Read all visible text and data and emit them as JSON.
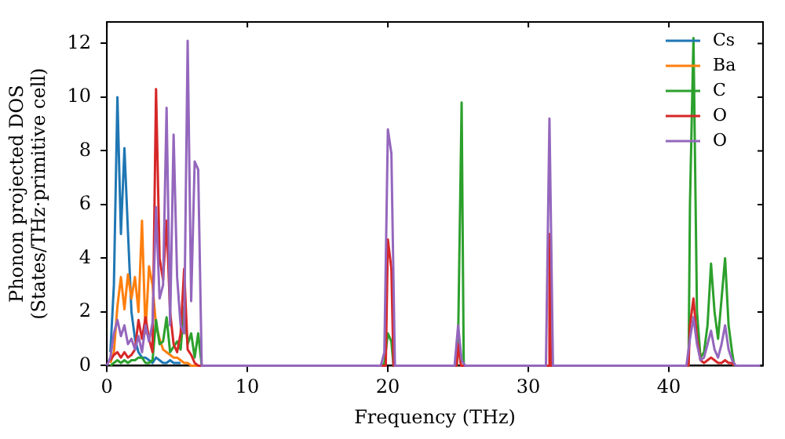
{
  "chart_data": {
    "type": "line",
    "xlabel": "Frequency (THz)",
    "ylabel": "Phonon projected DOS\n(States/THz·primitive cell)",
    "x": [
      0,
      0.25,
      0.5,
      0.75,
      1,
      1.25,
      1.5,
      1.75,
      2,
      2.25,
      2.5,
      2.75,
      3,
      3.25,
      3.5,
      3.75,
      4,
      4.25,
      4.5,
      4.75,
      5,
      5.25,
      5.5,
      5.75,
      6,
      6.25,
      6.5,
      6.75,
      7,
      19.5,
      19.75,
      20,
      20.25,
      20.5,
      24.75,
      25,
      25.25,
      25.5,
      31.25,
      31.5,
      31.75,
      41.25,
      41.5,
      41.75,
      42,
      42.25,
      42.5,
      42.75,
      43,
      43.25,
      43.5,
      43.75,
      44,
      44.25,
      44.5,
      44.75,
      46.5
    ],
    "xlim": [
      0,
      46.7
    ],
    "ylim": [
      0,
      12.8
    ],
    "xticks": [
      0,
      10,
      20,
      30,
      40
    ],
    "yticks": [
      0,
      2,
      4,
      6,
      8,
      10,
      12
    ],
    "grid": false,
    "legend": "top right",
    "marker": "none",
    "series": [
      {
        "name": "Cs",
        "color": "#1f77b4",
        "x": [
          0.25,
          0.5,
          0.75,
          1,
          1.25,
          1.5,
          1.75,
          2,
          2.25,
          2.5,
          2.75,
          3,
          3.25,
          3.5,
          3.75,
          4,
          4.25,
          4.5,
          4.75,
          5,
          5.25
        ],
        "values": [
          0.5,
          3,
          10,
          4.9,
          8.1,
          5,
          2,
          1,
          0.5,
          0.3,
          0.3,
          0.2,
          0.1,
          0.3,
          0.2,
          0.1,
          0.1,
          0.2,
          0.1,
          0.1,
          0.1
        ]
      },
      {
        "name": "Ba",
        "color": "#ff7f0e",
        "x": [
          0.25,
          0.5,
          0.75,
          1,
          1.25,
          1.5,
          1.75,
          2,
          2.25,
          2.5,
          2.75,
          3,
          3.25,
          3.5,
          3.75,
          4,
          4.25,
          4.5,
          4.75,
          5,
          5.25,
          5.5,
          5.75,
          6,
          6.25,
          6.5
        ],
        "values": [
          0.1,
          0.5,
          2.2,
          3.3,
          2.1,
          3.4,
          2.5,
          3.3,
          2,
          5.4,
          1.2,
          3.7,
          3,
          1.5,
          1,
          0.6,
          0.5,
          0.4,
          0.3,
          0.3,
          0.2,
          0.1,
          0.1,
          0,
          0,
          0
        ]
      },
      {
        "name": "C",
        "color": "#2ca02c",
        "x": [
          0.25,
          0.5,
          0.75,
          1,
          1.25,
          1.5,
          1.75,
          2,
          2.25,
          2.5,
          2.75,
          3,
          3.25,
          3.5,
          3.75,
          4,
          4.25,
          4.5,
          4.75,
          5,
          5.25,
          5.5,
          5.75,
          6,
          6.25,
          6.5,
          6.75,
          19.6,
          19.75,
          20,
          20.25,
          20.4,
          24.9,
          25,
          25.25,
          25.4,
          41.4,
          41.5,
          41.75,
          42,
          42.25,
          42.5,
          42.75,
          43,
          43.25,
          43.5,
          43.75,
          44,
          44.25,
          44.5,
          44.65
        ],
        "values": [
          0,
          0.1,
          0.2,
          0.1,
          0.2,
          0.1,
          0.2,
          0.2,
          0.3,
          0.3,
          0.1,
          0.1,
          0.2,
          1.7,
          0.8,
          0.9,
          1.8,
          0.5,
          0.7,
          0.9,
          0.6,
          2.2,
          0.8,
          1.2,
          0.3,
          1.2,
          0,
          0,
          0.1,
          1.2,
          0.9,
          0,
          0,
          1.0,
          9.8,
          0,
          0,
          6,
          12.2,
          2,
          0.3,
          0.5,
          1.5,
          3.8,
          2,
          1,
          2.5,
          4.0,
          1.5,
          0.5,
          0
        ]
      },
      {
        "name": "O",
        "color": "#d62728",
        "x": [
          0.25,
          0.5,
          0.75,
          1,
          1.25,
          1.5,
          1.75,
          2,
          2.25,
          2.5,
          2.75,
          3,
          3.25,
          3.5,
          3.75,
          4,
          4.25,
          4.5,
          4.75,
          5,
          5.25,
          5.5,
          5.75,
          6,
          6.25,
          6.5,
          19.85,
          20,
          20.25,
          20.4,
          24.9,
          25,
          25.2,
          31.4,
          31.5,
          31.6,
          41.4,
          41.5,
          41.75,
          42,
          42.25,
          42.5,
          42.75,
          43,
          43.25,
          43.5,
          43.75,
          44,
          44.25,
          44.5,
          44.6
        ],
        "values": [
          0.2,
          0.4,
          0.5,
          0.3,
          0.5,
          0.3,
          0.4,
          0.6,
          1.7,
          1.0,
          1.8,
          1.0,
          0.5,
          10.3,
          4,
          3.2,
          5.4,
          2,
          0.8,
          0.5,
          1.2,
          3.6,
          0.6,
          0.4,
          0.1,
          0,
          0,
          4.7,
          3.6,
          0,
          0,
          0.8,
          0,
          0,
          4.9,
          0,
          0,
          1.5,
          2.5,
          1,
          0.2,
          0.1,
          0.2,
          0.3,
          0.2,
          0.1,
          0.1,
          0.2,
          0.1,
          0.1,
          0
        ]
      },
      {
        "name": "O",
        "color": "#9467bd",
        "values": [
          0,
          0.3,
          1.2,
          1.7,
          1.1,
          1.5,
          0.8,
          1.0,
          0.6,
          1.1,
          0.5,
          1.5,
          0.9,
          1.6,
          5.9,
          2.5,
          3.0,
          9.6,
          1.5,
          8.6,
          3.3,
          1.5,
          1.2,
          12.1,
          2.4,
          7.6,
          7.3,
          0,
          0,
          0,
          0.5,
          8.8,
          7.9,
          0,
          0,
          1.5,
          0.2,
          0,
          0,
          9.2,
          0,
          0,
          1,
          1.8,
          0.8,
          0.2,
          0.3,
          0.8,
          1.3,
          0.6,
          0.3,
          0.8,
          1.5,
          0.6,
          0.2,
          0,
          0
        ]
      }
    ]
  }
}
